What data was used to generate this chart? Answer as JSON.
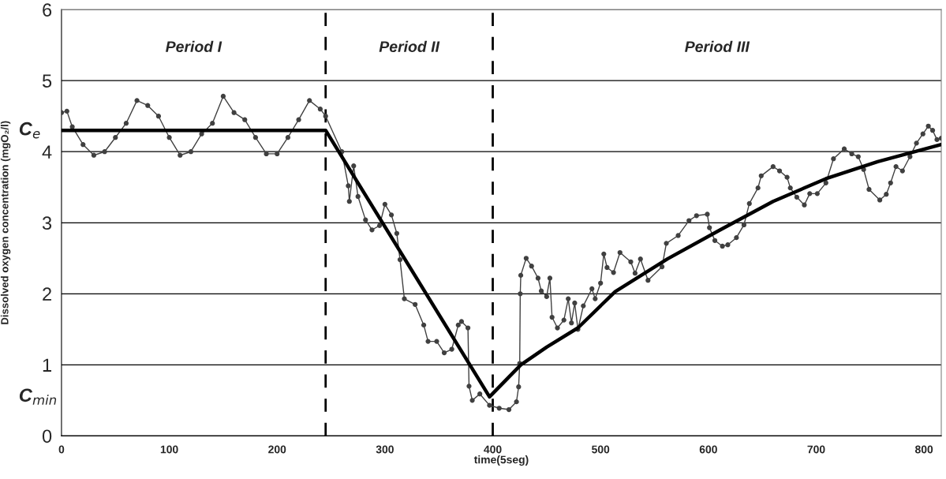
{
  "chart_data": {
    "type": "line",
    "xlabel": "time(5seg)",
    "ylabel": "Dissolved oxygen concentration (mgO₂/l)",
    "xlim": [
      0,
      816
    ],
    "ylim": [
      0,
      6
    ],
    "xticks": [
      0,
      100,
      200,
      300,
      400,
      500,
      600,
      700,
      800
    ],
    "yticks": [
      0,
      1,
      2,
      3,
      4,
      5,
      6
    ],
    "grid": "y",
    "series": [
      {
        "color": "#404040",
        "marker": "circle",
        "x": [
          0,
          5,
          10,
          20,
          30,
          40,
          50,
          60,
          70,
          80,
          90,
          100,
          110,
          120,
          130,
          140,
          150,
          160,
          170,
          180,
          190,
          200,
          210,
          220,
          230,
          240,
          245,
          260,
          266,
          267,
          271,
          275,
          282,
          288,
          295,
          300,
          306,
          311,
          314,
          318,
          328,
          336,
          340,
          348,
          355,
          362,
          368,
          371,
          377,
          378,
          381,
          388,
          397,
          406,
          415,
          422,
          424,
          425,
          425.5,
          426,
          431,
          436,
          442,
          445,
          450,
          453,
          455,
          460,
          466,
          470,
          473,
          476,
          479,
          484,
          492,
          495,
          500,
          503,
          506,
          512,
          518,
          528,
          532,
          537,
          544,
          557,
          561,
          572,
          582,
          589,
          599,
          601,
          606,
          613,
          618,
          626,
          633,
          638,
          646,
          649,
          660,
          666,
          673,
          676,
          682,
          689,
          694,
          701,
          709,
          716,
          726,
          733,
          739,
          744,
          749,
          759,
          765,
          769,
          774,
          780,
          787,
          793,
          799,
          804,
          808,
          812,
          816
        ],
        "values": [
          4.55,
          4.57,
          4.35,
          4.1,
          3.95,
          4.0,
          4.2,
          4.4,
          4.72,
          4.65,
          4.5,
          4.2,
          3.95,
          4.0,
          4.25,
          4.4,
          4.78,
          4.55,
          4.45,
          4.2,
          3.97,
          3.97,
          4.2,
          4.45,
          4.72,
          4.6,
          4.5,
          4.0,
          3.52,
          3.3,
          3.8,
          3.37,
          3.04,
          2.9,
          2.96,
          3.26,
          3.11,
          2.85,
          2.48,
          1.93,
          1.85,
          1.56,
          1.33,
          1.33,
          1.17,
          1.22,
          1.56,
          1.61,
          1.52,
          0.7,
          0.5,
          0.59,
          0.43,
          0.39,
          0.37,
          0.48,
          0.69,
          1.02,
          2.0,
          2.26,
          2.5,
          2.39,
          2.22,
          2.04,
          1.96,
          2.22,
          1.67,
          1.52,
          1.63,
          1.93,
          1.59,
          1.87,
          1.5,
          1.83,
          2.07,
          1.93,
          2.15,
          2.56,
          2.37,
          2.3,
          2.58,
          2.45,
          2.29,
          2.49,
          2.19,
          2.38,
          2.71,
          2.82,
          3.03,
          3.1,
          3.12,
          2.93,
          2.75,
          2.67,
          2.69,
          2.79,
          2.97,
          3.27,
          3.49,
          3.66,
          3.79,
          3.73,
          3.64,
          3.49,
          3.36,
          3.25,
          3.41,
          3.41,
          3.56,
          3.9,
          4.04,
          3.97,
          3.93,
          3.75,
          3.47,
          3.32,
          3.4,
          3.56,
          3.79,
          3.73,
          3.93,
          4.12,
          4.25,
          4.36,
          4.3,
          4.17,
          4.19
        ]
      },
      {
        "color": "#000000",
        "marker": "none",
        "x": [
          0,
          245,
          397,
          426,
          450,
          479,
          513.5,
          562,
          611,
          660,
          709,
          757,
          816
        ],
        "values": [
          4.3,
          4.3,
          0.55,
          1.0,
          1.25,
          1.52,
          2.03,
          2.49,
          2.9,
          3.3,
          3.62,
          3.86,
          4.1
        ]
      }
    ],
    "ref_lines": [
      {
        "axis": "x",
        "value": 245,
        "line_style": "dashed",
        "color": "#000000"
      },
      {
        "axis": "x",
        "value": 400,
        "line_style": "dashed",
        "color": "#000000"
      }
    ],
    "annotations": [
      "Period I",
      "Period II",
      "Period III",
      "C$_{e}$",
      "C$_{min}$"
    ]
  }
}
